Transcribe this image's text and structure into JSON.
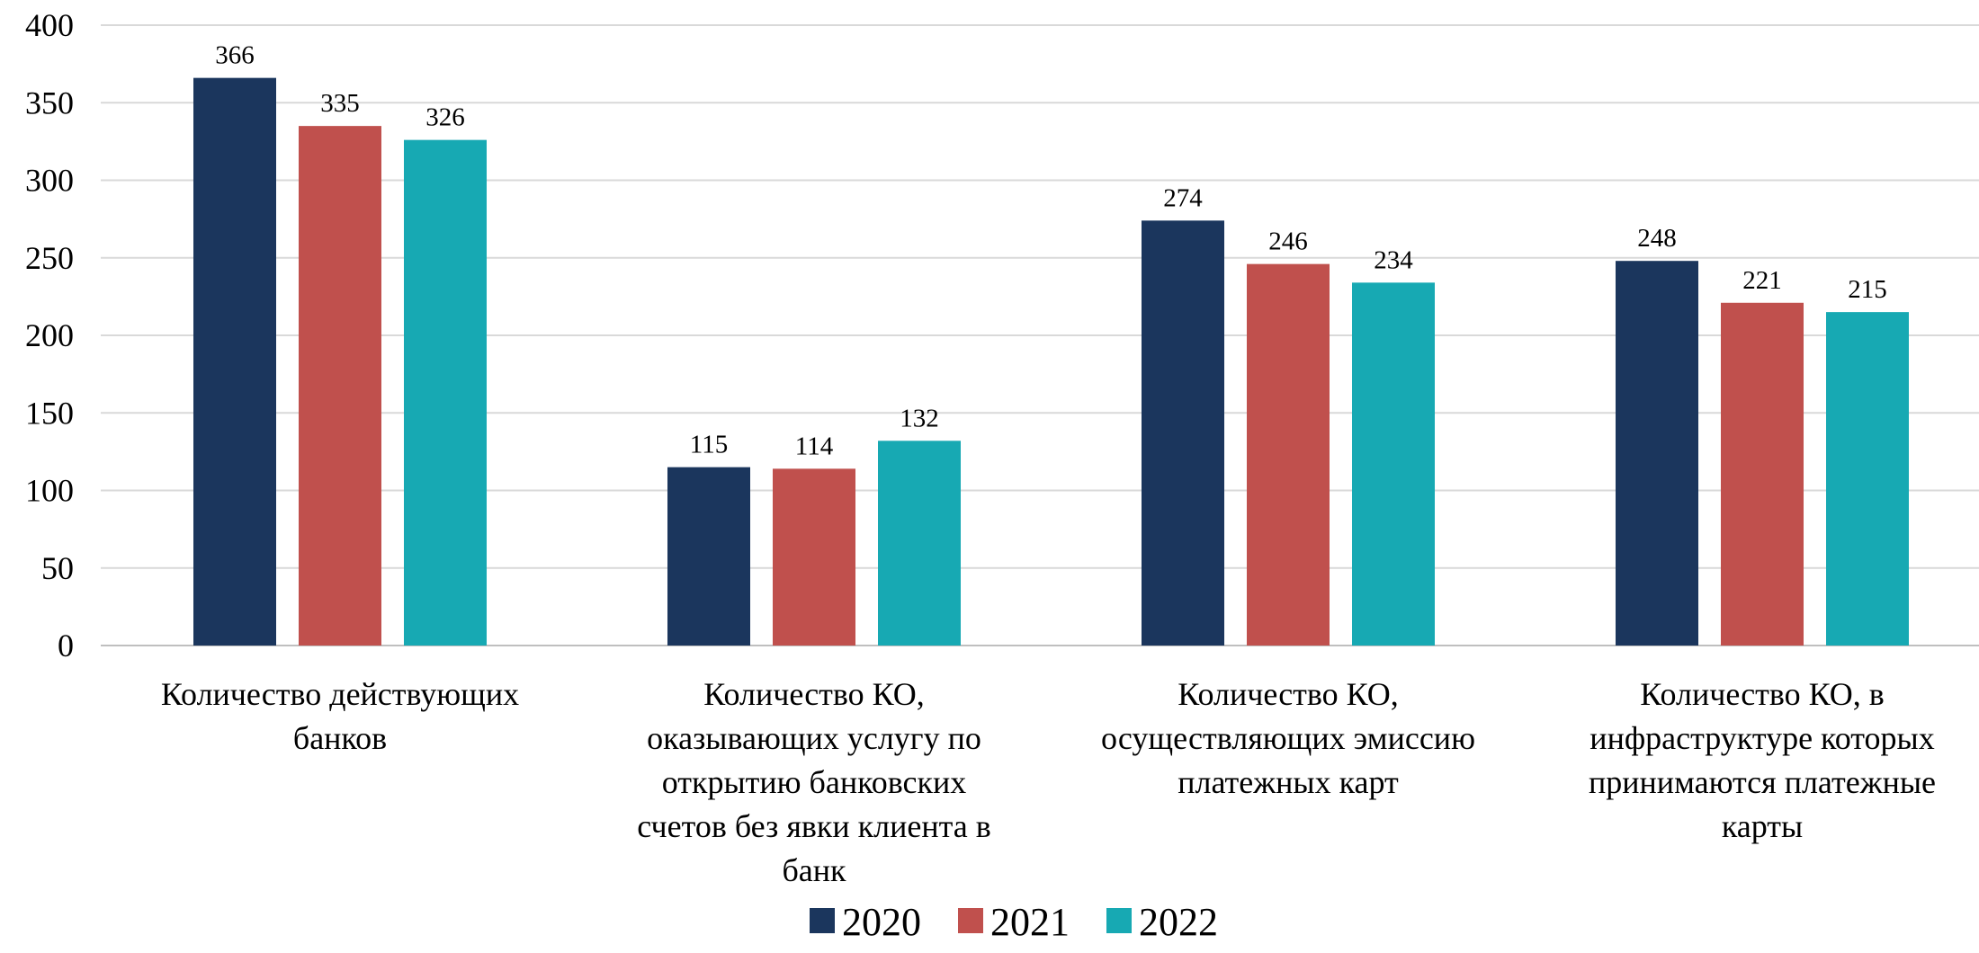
{
  "chart_data": {
    "type": "bar",
    "title": "",
    "xlabel": "",
    "ylabel": "",
    "ylim": [
      0,
      400
    ],
    "yticks": [
      0,
      50,
      100,
      150,
      200,
      250,
      300,
      350,
      400
    ],
    "grid": true,
    "legend": "bottom-center",
    "categories": [
      "Количество действующих банков",
      "Количество КО, оказывающих услугу по открытию банковских счетов без явки клиента в банк",
      "Количество КО, осуществляющих эмиссию платежных карт",
      "Количество КО, в инфраструктуре которых принимаются платежные карты"
    ],
    "category_lines": [
      [
        "Количество действующих",
        "банков"
      ],
      [
        "Количество КО,",
        "оказывающих услугу по",
        "открытию банковских",
        "счетов без явки клиента в",
        "банк"
      ],
      [
        "Количество КО,",
        "осуществляющих эмиссию",
        "платежных карт"
      ],
      [
        "Количество КО, в",
        "инфраструктуре которых",
        "принимаются платежные",
        "карты"
      ]
    ],
    "series": [
      {
        "name": "2020",
        "color": "#1b365d",
        "values": [
          366,
          115,
          274,
          248
        ]
      },
      {
        "name": "2021",
        "color": "#c0504d",
        "values": [
          335,
          114,
          246,
          221
        ]
      },
      {
        "name": "2022",
        "color": "#17a9b3",
        "values": [
          326,
          132,
          234,
          215
        ]
      }
    ]
  }
}
